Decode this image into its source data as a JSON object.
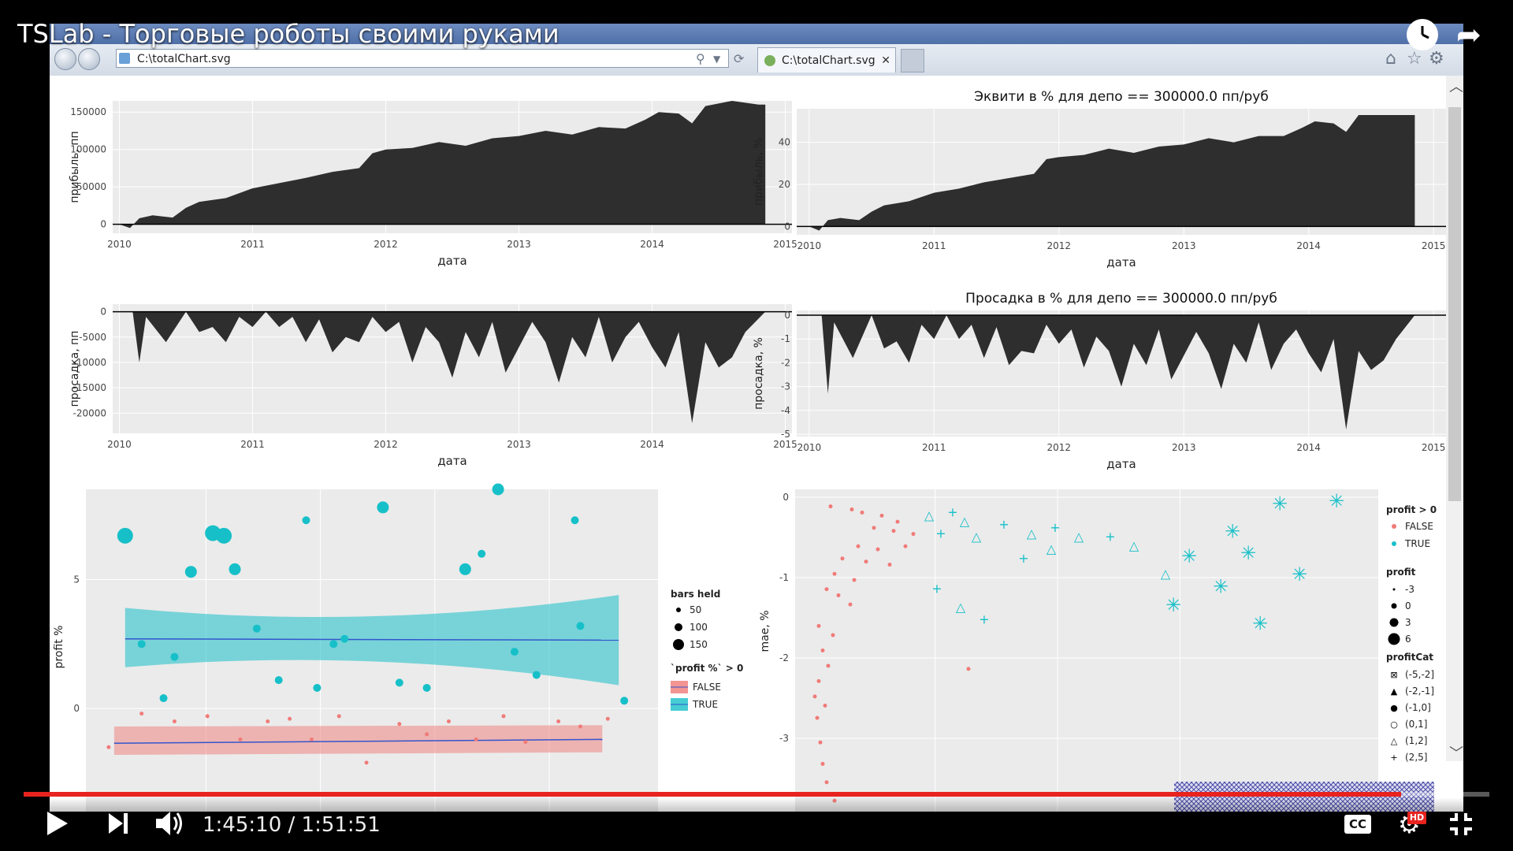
{
  "player": {
    "title": "TSLab - Торговые роботы своими руками",
    "current_time": "1:45:10",
    "duration": "1:51:51",
    "progress": 0.94,
    "cc_label": "CC",
    "hd_label": "HD"
  },
  "browser": {
    "address": "C:\\totalChart.svg",
    "tab_label": "C:\\totalChart.svg"
  },
  "colors": {
    "panel": "#ebebeb",
    "area": "#2e2e2e",
    "teal": "#17c0c8",
    "pink": "#f07b78",
    "line": "#3355cc"
  },
  "chart_data": [
    {
      "type": "area",
      "title": "",
      "xlabel": "дата",
      "ylabel": "прибыль, пп",
      "xticks": [
        "2010",
        "2011",
        "2012",
        "2013",
        "2014",
        "2015"
      ],
      "yticks": [
        "150000",
        "100000",
        "50000",
        "0"
      ],
      "xlim": [
        2009.95,
        2015.05
      ],
      "ylim": [
        -12000,
        165000
      ],
      "x": [
        2010.0,
        2010.08,
        2010.15,
        2010.25,
        2010.4,
        2010.5,
        2010.6,
        2010.8,
        2011.0,
        2011.2,
        2011.4,
        2011.6,
        2011.8,
        2011.9,
        2012.0,
        2012.2,
        2012.4,
        2012.6,
        2012.8,
        2013.0,
        2013.2,
        2013.4,
        2013.6,
        2013.8,
        2013.95,
        2014.05,
        2014.2,
        2014.3,
        2014.4,
        2014.6,
        2014.8,
        2014.85
      ],
      "y": [
        0,
        -5000,
        8000,
        12000,
        9000,
        22000,
        30000,
        35000,
        48000,
        55000,
        62000,
        70000,
        75000,
        95000,
        100000,
        102000,
        110000,
        105000,
        115000,
        118000,
        125000,
        120000,
        130000,
        128000,
        140000,
        150000,
        148000,
        135000,
        158000,
        165000,
        160000,
        160000
      ]
    },
    {
      "type": "area",
      "title": "Эквити в % для депо == 300000.0 пп/руб",
      "xlabel": "дата",
      "ylabel": "прибыль, %",
      "xticks": [
        "2010",
        "2011",
        "2012",
        "2013",
        "2014",
        "2015"
      ],
      "yticks": [
        "40",
        "20",
        "0"
      ],
      "xlim": [
        2009.9,
        2015.1
      ],
      "ylim": [
        -4,
        56
      ],
      "x": [
        2010.0,
        2010.08,
        2010.15,
        2010.25,
        2010.4,
        2010.5,
        2010.6,
        2010.8,
        2011.0,
        2011.2,
        2011.4,
        2011.6,
        2011.8,
        2011.9,
        2012.0,
        2012.2,
        2012.4,
        2012.6,
        2012.8,
        2013.0,
        2013.2,
        2013.4,
        2013.6,
        2013.8,
        2013.95,
        2014.05,
        2014.2,
        2014.3,
        2014.4,
        2014.6,
        2014.8,
        2014.85
      ],
      "y": [
        0,
        -2,
        3,
        4,
        3,
        7,
        10,
        12,
        16,
        18,
        21,
        23,
        25,
        32,
        33,
        34,
        37,
        35,
        38,
        39,
        42,
        40,
        43,
        43,
        47,
        50,
        49,
        45,
        53,
        53,
        53,
        53
      ]
    },
    {
      "type": "area",
      "title": "",
      "xlabel": "дата",
      "ylabel": "просадка, пп",
      "xticks": [
        "2010",
        "2011",
        "2012",
        "2013",
        "2014",
        "2015"
      ],
      "yticks": [
        "0",
        "-5000",
        "-10000",
        "-15000",
        "-20000"
      ],
      "xlim": [
        2009.95,
        2015.05
      ],
      "ylim": [
        -24000,
        1500
      ],
      "x": [
        2010.1,
        2010.15,
        2010.2,
        2010.35,
        2010.5,
        2010.6,
        2010.7,
        2010.8,
        2010.9,
        2011.0,
        2011.1,
        2011.2,
        2011.3,
        2011.4,
        2011.5,
        2011.6,
        2011.7,
        2011.8,
        2011.9,
        2012.0,
        2012.1,
        2012.2,
        2012.3,
        2012.4,
        2012.5,
        2012.6,
        2012.7,
        2012.8,
        2012.9,
        2013.0,
        2013.1,
        2013.2,
        2013.3,
        2013.4,
        2013.5,
        2013.6,
        2013.7,
        2013.8,
        2013.9,
        2014.0,
        2014.1,
        2014.2,
        2014.3,
        2014.4,
        2014.5,
        2014.6,
        2014.7,
        2014.85
      ],
      "y": [
        0,
        -10000,
        -1000,
        -6000,
        0,
        -4000,
        -3000,
        -6000,
        -1000,
        -3000,
        0,
        -3000,
        -1000,
        -6000,
        -1500,
        -8000,
        -5000,
        -6000,
        -1000,
        -4000,
        -2000,
        -10000,
        -3000,
        -6000,
        -13000,
        -4000,
        -9000,
        -2000,
        -12000,
        -7000,
        -2000,
        -6000,
        -14000,
        -5000,
        -9000,
        -1000,
        -10000,
        -5000,
        -2000,
        -7000,
        -11000,
        -4000,
        -22000,
        -6000,
        -11000,
        -9000,
        -4000,
        0
      ]
    },
    {
      "type": "area",
      "title": "Просадка в % для депо == 300000.0 пп/руб",
      "xlabel": "дата",
      "ylabel": "просадка, %",
      "xticks": [
        "2010",
        "2011",
        "2012",
        "2013",
        "2014",
        "2015"
      ],
      "yticks": [
        "0",
        "-1",
        "-2",
        "-3",
        "-4",
        "-5"
      ],
      "xlim": [
        2009.9,
        2015.1
      ],
      "ylim": [
        -5.1,
        0.2
      ],
      "x": [
        2010.1,
        2010.15,
        2010.2,
        2010.35,
        2010.5,
        2010.6,
        2010.7,
        2010.8,
        2010.9,
        2011.0,
        2011.1,
        2011.2,
        2011.3,
        2011.4,
        2011.5,
        2011.6,
        2011.7,
        2011.8,
        2011.9,
        2012.0,
        2012.1,
        2012.2,
        2012.3,
        2012.4,
        2012.5,
        2012.6,
        2012.7,
        2012.8,
        2012.9,
        2013.0,
        2013.1,
        2013.2,
        2013.3,
        2013.4,
        2013.5,
        2013.6,
        2013.7,
        2013.8,
        2013.9,
        2014.0,
        2014.1,
        2014.2,
        2014.3,
        2014.4,
        2014.5,
        2014.6,
        2014.7,
        2014.85
      ],
      "y": [
        0,
        -3.3,
        -0.3,
        -1.8,
        0,
        -1.4,
        -1.1,
        -2.0,
        -0.4,
        -1.0,
        0,
        -1.0,
        -0.4,
        -1.8,
        -0.5,
        -2.1,
        -1.5,
        -1.6,
        -0.4,
        -1.2,
        -0.6,
        -2.2,
        -0.9,
        -1.5,
        -3.0,
        -1.2,
        -2.1,
        -0.6,
        -2.7,
        -1.7,
        -0.7,
        -1.6,
        -3.1,
        -1.2,
        -2.0,
        -0.3,
        -2.3,
        -1.2,
        -0.6,
        -1.6,
        -2.4,
        -1.0,
        -4.8,
        -1.5,
        -2.3,
        -1.9,
        -1.0,
        0
      ]
    },
    {
      "type": "scatter",
      "title": "",
      "xlabel": "",
      "ylabel": "profit %",
      "yticks": [
        "5",
        "0"
      ],
      "xlim": [
        0,
        100
      ],
      "ylim": [
        -4,
        8.5
      ],
      "legend": {
        "size_title": "bars held",
        "size_labels": [
          "50",
          "100",
          "150"
        ],
        "color_title": "`profit %` > 0",
        "color_labels": [
          "FALSE",
          "TRUE"
        ]
      },
      "teal_points": [
        [
          5,
          6.7,
          3
        ],
        [
          8,
          2.5,
          1
        ],
        [
          14,
          2.0,
          1
        ],
        [
          17,
          5.3,
          2
        ],
        [
          21,
          6.8,
          3
        ],
        [
          23,
          6.7,
          3
        ],
        [
          25,
          5.4,
          2
        ],
        [
          29,
          3.1,
          1
        ],
        [
          33,
          1.1,
          1
        ],
        [
          38,
          7.3,
          1
        ],
        [
          43,
          2.5,
          1
        ],
        [
          45,
          2.7,
          1
        ],
        [
          52,
          7.8,
          2
        ],
        [
          55,
          1.0,
          1
        ],
        [
          60,
          0.8,
          1
        ],
        [
          67,
          5.4,
          2
        ],
        [
          70,
          6.0,
          1
        ],
        [
          73,
          8.5,
          2
        ],
        [
          76,
          2.2,
          1
        ],
        [
          80,
          1.3,
          1
        ],
        [
          87,
          7.3,
          1
        ],
        [
          88,
          3.2,
          1
        ],
        [
          96,
          0.3,
          1
        ],
        [
          12,
          0.4,
          1
        ],
        [
          40,
          0.8,
          1
        ]
      ],
      "pink_points": [
        [
          2,
          -1.5,
          1
        ],
        [
          8,
          -0.2,
          1
        ],
        [
          14,
          -0.5,
          1
        ],
        [
          20,
          -0.3,
          1
        ],
        [
          26,
          -1.2,
          1
        ],
        [
          31,
          -0.5,
          1
        ],
        [
          35,
          -0.4,
          1
        ],
        [
          39,
          -1.2,
          1
        ],
        [
          44,
          -0.3,
          1
        ],
        [
          49,
          -2.1,
          1
        ],
        [
          55,
          -0.6,
          1
        ],
        [
          60,
          -1.0,
          1
        ],
        [
          64,
          -0.5,
          1
        ],
        [
          69,
          -1.2,
          1
        ],
        [
          74,
          -0.3,
          1
        ],
        [
          78,
          -1.3,
          1
        ],
        [
          84,
          -0.5,
          1
        ],
        [
          88,
          -0.7,
          1
        ],
        [
          93,
          -0.4,
          1
        ]
      ],
      "teal_band": {
        "fit": 2.7,
        "upper_left": 3.9,
        "upper_mid": 3.2,
        "upper_right": 4.4,
        "lower_left": 1.6,
        "lower_mid": 2.2,
        "lower_right": 0.9
      },
      "pink_band": {
        "fit_left": -1.35,
        "fit_right": -1.2,
        "upper": -0.7,
        "lower": -1.8
      }
    },
    {
      "type": "scatter",
      "title": "",
      "xlabel": "",
      "ylabel": "mae, %",
      "yticks": [
        "0",
        "-1",
        "-2",
        "-3"
      ],
      "ylim": [
        -3.9,
        0.1
      ],
      "legend": {
        "color_title": "profit > 0",
        "color_labels": [
          "FALSE",
          "TRUE"
        ],
        "size_title": "profit",
        "size_labels": [
          "-3",
          "0",
          "3",
          "6"
        ],
        "shape_title": "profitCat",
        "shape_labels": [
          "(-5,-2]",
          "(-2,-1]",
          "(-1,0]",
          "(0,1]",
          "(1,2]",
          "(2,5]"
        ]
      }
    }
  ]
}
